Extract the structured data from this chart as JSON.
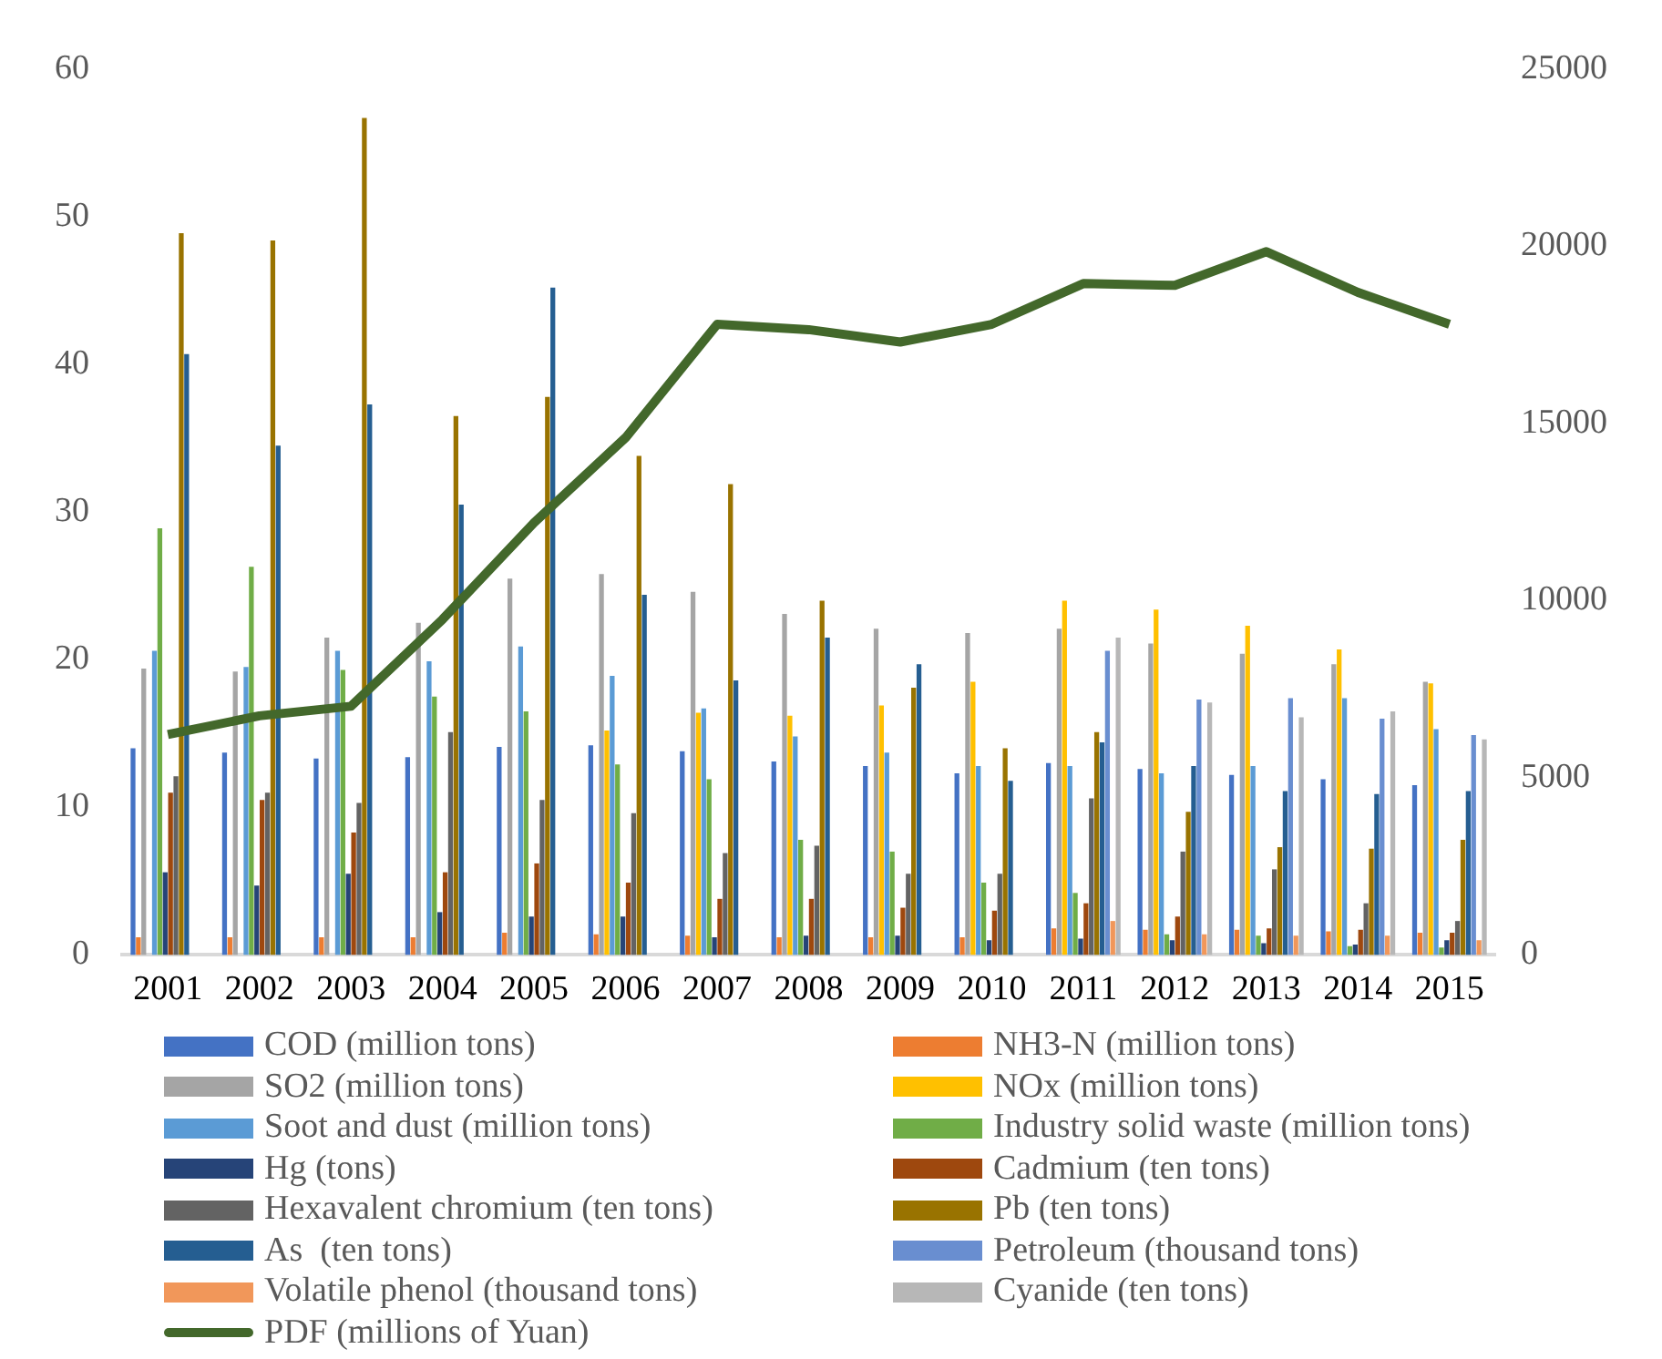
{
  "chart_data": {
    "type": "bar",
    "categories": [
      "2001",
      "2002",
      "2003",
      "2004",
      "2005",
      "2006",
      "2007",
      "2008",
      "2009",
      "2010",
      "2011",
      "2012",
      "2013",
      "2014",
      "2015"
    ],
    "ylim": [
      0,
      60
    ],
    "yticks": [
      0,
      10,
      20,
      30,
      40,
      50,
      60
    ],
    "y2lim": [
      0,
      25000
    ],
    "y2ticks": [
      0,
      5000,
      10000,
      15000,
      20000,
      25000
    ],
    "grid": false,
    "legend": "bottom",
    "series": [
      {
        "name": "COD (million tons)",
        "color": "#4472c4",
        "values": [
          14.0,
          13.7,
          13.3,
          13.4,
          14.1,
          14.2,
          13.8,
          13.1,
          12.8,
          12.3,
          13.0,
          12.6,
          12.2,
          11.9,
          11.5
        ]
      },
      {
        "name": "NH3-N (million tons)",
        "color": "#ed7d31",
        "values": [
          1.2,
          1.2,
          1.2,
          1.2,
          1.5,
          1.4,
          1.3,
          1.2,
          1.2,
          1.2,
          1.8,
          1.7,
          1.7,
          1.6,
          1.5
        ]
      },
      {
        "name": "SO2 (million tons)",
        "color": "#a5a5a5",
        "values": [
          19.4,
          19.2,
          21.5,
          22.5,
          25.5,
          25.8,
          24.6,
          23.1,
          22.1,
          21.8,
          22.1,
          21.1,
          20.4,
          19.7,
          18.5
        ]
      },
      {
        "name": "NOx (million tons)",
        "color": "#ffc000",
        "values": [
          null,
          null,
          null,
          null,
          null,
          15.2,
          16.4,
          16.2,
          16.9,
          18.5,
          24.0,
          23.4,
          22.3,
          20.7,
          18.4
        ]
      },
      {
        "name": "Soot and dust (million tons)",
        "color": "#5b9bd5",
        "values": [
          20.6,
          19.5,
          20.6,
          19.9,
          20.9,
          18.9,
          16.7,
          14.8,
          13.7,
          12.8,
          12.8,
          12.3,
          12.8,
          17.4,
          15.3
        ]
      },
      {
        "name": "Industry solid waste (million tons)",
        "color": "#70ad47",
        "values": [
          28.9,
          26.3,
          19.3,
          17.5,
          16.5,
          12.9,
          11.9,
          7.8,
          7.0,
          4.9,
          4.2,
          1.4,
          1.3,
          0.6,
          0.5
        ]
      },
      {
        "name": "Hg (tons)",
        "color": "#264478",
        "values": [
          5.6,
          4.7,
          5.5,
          2.9,
          2.6,
          2.6,
          1.2,
          1.3,
          1.3,
          1.0,
          1.1,
          1.0,
          0.8,
          0.7,
          1.0
        ]
      },
      {
        "name": "Cadmium (ten tons)",
        "color": "#9e480e",
        "values": [
          11.0,
          10.5,
          8.3,
          5.6,
          6.2,
          4.9,
          3.8,
          3.8,
          3.2,
          3.0,
          3.5,
          2.6,
          1.8,
          1.7,
          1.5
        ]
      },
      {
        "name": "Hexavalent chromium (ten tons)",
        "color": "#636363",
        "values": [
          12.1,
          11.0,
          10.3,
          15.1,
          10.5,
          9.6,
          6.9,
          7.4,
          5.5,
          5.5,
          10.6,
          7.0,
          5.8,
          3.5,
          2.3
        ]
      },
      {
        "name": "Pb (ten tons)",
        "color": "#997300",
        "values": [
          48.9,
          48.4,
          56.7,
          36.5,
          37.8,
          33.8,
          31.9,
          24.0,
          18.1,
          14.0,
          15.1,
          9.7,
          7.3,
          7.2,
          7.8
        ]
      },
      {
        "name": "As  (ten tons)",
        "color": "#255e91",
        "values": [
          40.7,
          34.5,
          37.3,
          30.5,
          45.2,
          24.4,
          18.6,
          21.5,
          19.7,
          11.8,
          14.4,
          12.8,
          11.1,
          10.9,
          11.1
        ]
      },
      {
        "name": "Petroleum (thousand tons)",
        "color": "#698ed0",
        "values": [
          null,
          null,
          null,
          null,
          null,
          null,
          null,
          null,
          null,
          null,
          20.6,
          17.3,
          17.4,
          16.0,
          14.9
        ]
      },
      {
        "name": "Volatile phenol (thousand tons)",
        "color": "#f1975a",
        "values": [
          null,
          null,
          null,
          null,
          null,
          null,
          null,
          null,
          null,
          null,
          2.3,
          1.4,
          1.3,
          1.3,
          1.0
        ]
      },
      {
        "name": "Cyanide (ten tons)",
        "color": "#b7b7b7",
        "values": [
          null,
          null,
          null,
          null,
          null,
          null,
          null,
          null,
          null,
          null,
          21.5,
          17.1,
          16.1,
          16.5,
          14.6
        ]
      },
      {
        "name": "PDF (millions of Yuan)",
        "color": "#43682b",
        "type": "line",
        "axis": "y2",
        "values": [
          6220,
          6750,
          7020,
          9470,
          12200,
          14600,
          17800,
          17650,
          17300,
          17800,
          18950,
          18900,
          19850,
          18700,
          17800
        ]
      }
    ]
  }
}
